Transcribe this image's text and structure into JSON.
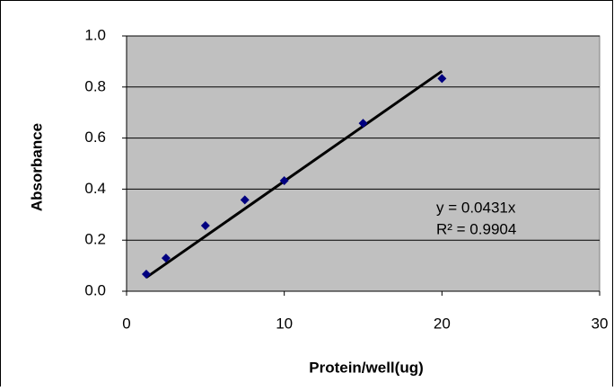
{
  "chart_data": {
    "type": "scatter",
    "x_label": "Protein/well(ug)",
    "y_label": "Absorbance",
    "x": [
      1.25,
      2.5,
      5,
      7.5,
      10,
      15,
      20
    ],
    "series": [
      {
        "color": "#000080",
        "values": [
          0.067,
          0.13,
          0.257,
          0.358,
          0.433,
          0.658,
          0.833
        ]
      }
    ],
    "xlim": [
      0,
      30
    ],
    "xticks": [
      0,
      10,
      20,
      30
    ],
    "ylim": [
      0,
      1
    ],
    "yticks": [
      {
        "value": 0,
        "label": "0.0"
      },
      0.2,
      0.4,
      0.6,
      0.8,
      {
        "value": 1,
        "label": "1.0"
      }
    ],
    "grid": true,
    "plot_background": "#c0c0c0",
    "trendline": {
      "slope": 0.0431,
      "r2": 0.9904,
      "equation_label": "y = 0.0431x",
      "r2_label": "R² = 0.9904",
      "color": "#000000"
    }
  }
}
